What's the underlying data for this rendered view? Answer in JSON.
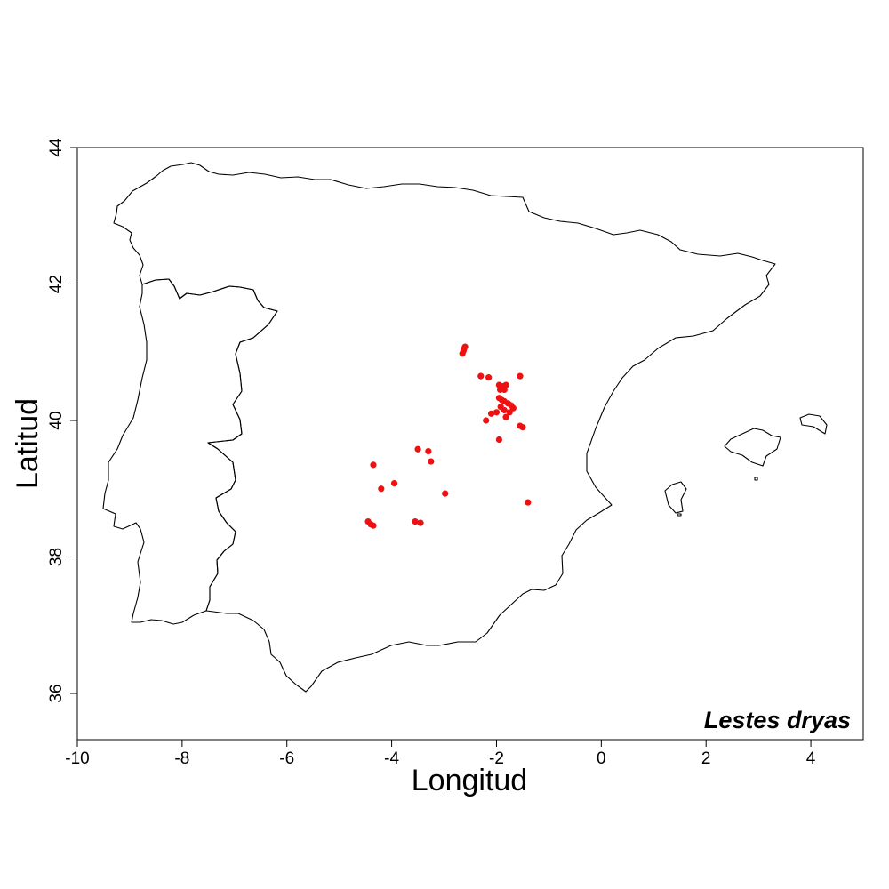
{
  "chart_data": {
    "type": "scatter",
    "title": "",
    "annotation": "Lestes dryas",
    "xlabel": "Longitud",
    "ylabel": "Latitud",
    "xlim": [
      -10,
      5
    ],
    "ylim": [
      35.3,
      44
    ],
    "xticks": [
      -10,
      -8,
      -6,
      -4,
      -2,
      0,
      2,
      4
    ],
    "yticks": [
      36,
      38,
      40,
      42,
      44
    ],
    "grid": false,
    "point_color": "#ee1111",
    "series": [
      {
        "x": [
          -2.65,
          -2.62,
          -2.6,
          -2.63,
          -2.3,
          -2.15,
          -1.95,
          -1.88,
          -1.82,
          -1.93,
          -1.85,
          -1.55,
          -1.95,
          -1.9,
          -1.85,
          -1.78,
          -1.72,
          -1.68,
          -1.92,
          -1.85,
          -1.75,
          -2.0,
          -2.1,
          -1.82,
          -2.2,
          -1.95,
          -1.55,
          -1.5,
          -1.4,
          -4.35,
          -3.5,
          -3.3,
          -3.25,
          -4.2,
          -3.95,
          -2.98,
          -4.45,
          -4.4,
          -4.35,
          -3.55,
          -3.45
        ],
        "y": [
          40.98,
          41.05,
          41.08,
          41.02,
          40.65,
          40.63,
          40.52,
          40.5,
          40.52,
          40.45,
          40.45,
          40.65,
          40.33,
          40.3,
          40.28,
          40.25,
          40.22,
          40.18,
          40.2,
          40.15,
          40.12,
          40.12,
          40.1,
          40.05,
          40.0,
          39.72,
          39.92,
          39.9,
          38.8,
          39.35,
          39.58,
          39.55,
          39.4,
          39.0,
          39.08,
          38.93,
          38.52,
          38.48,
          38.46,
          38.52,
          38.5
        ]
      }
    ]
  }
}
